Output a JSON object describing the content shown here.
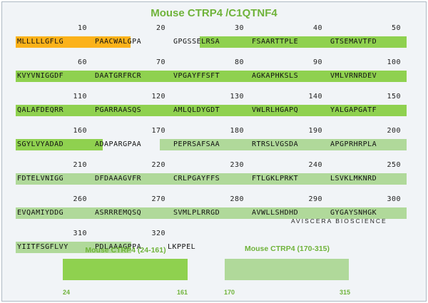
{
  "title": "Mouse CTRP4 /C1QTNF4",
  "colors": {
    "signal": "#fbb21a",
    "domain1": "#8fd14f",
    "domain2": "#b0d99a",
    "title": "#6fb33a",
    "background": "#f1f4f7"
  },
  "rows": [
    {
      "numbers": [
        "10",
        "20",
        "30",
        "40",
        "50"
      ],
      "blocks": [
        "MLLLLLGFLG",
        "PAACWALGPA",
        "GPGSSELRSA",
        "FSAARTTPLE",
        "GTSEMAVTFD"
      ]
    },
    {
      "numbers": [
        "60",
        "70",
        "80",
        "90",
        "100"
      ],
      "blocks": [
        "KVYVNIGGDF",
        "DAATGRFRCR",
        "VPGAYFFSFT",
        "AGKAPHKSLS",
        "VMLVRNRDEV"
      ]
    },
    {
      "numbers": [
        "110",
        "120",
        "130",
        "140",
        "150"
      ],
      "blocks": [
        "QALAFDEQRR",
        "PGARRAASQS",
        "AMLQLDYGDT",
        "VWLRLHGAPQ",
        "YALGAPGATF"
      ]
    },
    {
      "numbers": [
        "160",
        "170",
        "180",
        "190",
        "200"
      ],
      "blocks": [
        "SGYLVYADAD",
        "ADAPARGPAA",
        "PEPRSAFSAA",
        "RTRSLVGSDA",
        "APGPRHRPLA"
      ]
    },
    {
      "numbers": [
        "210",
        "220",
        "230",
        "240",
        "250"
      ],
      "blocks": [
        "FDTELVNIGG",
        "DFDAAAGVFR",
        "CRLPGAYFFS",
        "FTLGKLPRKT",
        "LSVKLMKNRD"
      ]
    },
    {
      "numbers": [
        "260",
        "270",
        "280",
        "290",
        "300"
      ],
      "blocks": [
        "EVQAMIYDDG",
        "ASRRREMQSQ",
        "SVMLPLRRGD",
        "AVWLLSHDHD",
        "GYGAYSNHGK"
      ]
    },
    {
      "numbers": [
        "310",
        "320"
      ],
      "blocks": [
        "YIITFSGFLVY",
        "PDLAAAGPPA",
        "LKPPEL"
      ]
    }
  ],
  "credit": "AVISCERA BIOSCIENCE",
  "constructs": [
    {
      "label": "Mouse CTRP4 (24-161)",
      "start": "24",
      "end": "161"
    },
    {
      "label": "Mouse CTRP4 (170-315)",
      "start": "170",
      "end": "315"
    }
  ]
}
